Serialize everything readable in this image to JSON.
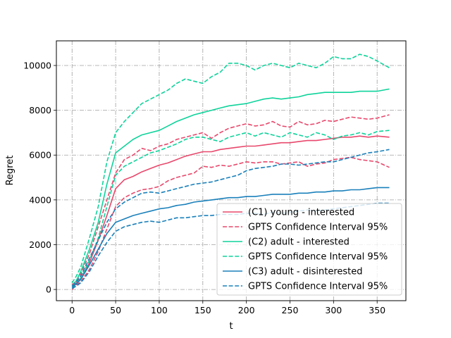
{
  "chart_data": {
    "type": "line",
    "title": "",
    "xlabel": "t",
    "ylabel": "Regret",
    "xlim": [
      -18,
      383
    ],
    "ylim": [
      -500,
      11100
    ],
    "xticks": [
      0,
      50,
      100,
      150,
      200,
      250,
      300,
      350
    ],
    "yticks": [
      0,
      2000,
      4000,
      6000,
      8000,
      10000
    ],
    "grid": true,
    "legend_position": "lower-right",
    "series": [
      {
        "name": "(C1) young - interested",
        "color": "#e8486c",
        "dash": "solid",
        "x": [
          0,
          5,
          10,
          20,
          30,
          40,
          50,
          60,
          70,
          80,
          90,
          100,
          110,
          120,
          130,
          140,
          150,
          160,
          170,
          180,
          190,
          200,
          210,
          220,
          230,
          240,
          250,
          260,
          270,
          280,
          290,
          300,
          310,
          320,
          330,
          340,
          350,
          364
        ],
        "y": [
          100,
          300,
          500,
          1200,
          2200,
          3300,
          4500,
          4900,
          5050,
          5250,
          5400,
          5550,
          5650,
          5800,
          5950,
          6050,
          6150,
          6150,
          6250,
          6300,
          6350,
          6400,
          6400,
          6450,
          6500,
          6550,
          6550,
          6600,
          6650,
          6650,
          6700,
          6750,
          6800,
          6800,
          6850,
          6800,
          6850,
          6800
        ]
      },
      {
        "name": "GPTS Confidence Interval 95%",
        "color": "#e8486c",
        "dash": "dashed",
        "x": [
          0,
          5,
          10,
          20,
          30,
          40,
          50,
          60,
          70,
          80,
          90,
          100,
          110,
          120,
          130,
          140,
          150,
          160,
          170,
          180,
          190,
          200,
          210,
          220,
          230,
          240,
          250,
          260,
          270,
          280,
          290,
          300,
          310,
          320,
          330,
          340,
          350,
          364
        ],
        "y": [
          200,
          400,
          700,
          1600,
          2800,
          4000,
          5200,
          5800,
          6000,
          6300,
          6200,
          6400,
          6500,
          6700,
          6800,
          6900,
          7000,
          6750,
          7000,
          7200,
          7300,
          7400,
          7300,
          7350,
          7500,
          7300,
          7250,
          7500,
          7350,
          7400,
          7550,
          7500,
          7600,
          7700,
          7650,
          7600,
          7650,
          7800
        ]
      },
      {
        "name": "GPTS Confidence Interval 95%",
        "color": "#e8486c",
        "dash": "dashed",
        "x": [
          0,
          5,
          10,
          20,
          30,
          40,
          50,
          60,
          70,
          80,
          90,
          100,
          110,
          120,
          130,
          140,
          150,
          160,
          170,
          180,
          190,
          200,
          210,
          220,
          230,
          240,
          250,
          260,
          270,
          280,
          290,
          300,
          310,
          320,
          330,
          340,
          350,
          364
        ],
        "y": [
          0,
          200,
          350,
          900,
          1700,
          2700,
          3700,
          4100,
          4300,
          4450,
          4500,
          4600,
          4850,
          5000,
          5100,
          5200,
          5500,
          5450,
          5550,
          5500,
          5600,
          5700,
          5650,
          5700,
          5700,
          5600,
          5650,
          5700,
          5500,
          5600,
          5650,
          5800,
          5850,
          5900,
          5800,
          5750,
          5700,
          5450
        ]
      },
      {
        "name": "(C2) adult - interested",
        "color": "#0fd39b",
        "dash": "solid",
        "x": [
          0,
          5,
          10,
          20,
          30,
          40,
          50,
          60,
          70,
          80,
          90,
          100,
          110,
          120,
          130,
          140,
          150,
          160,
          170,
          180,
          190,
          200,
          210,
          220,
          230,
          240,
          250,
          260,
          270,
          280,
          290,
          300,
          310,
          320,
          330,
          340,
          350,
          364
        ],
        "y": [
          150,
          400,
          800,
          1800,
          3000,
          4700,
          6100,
          6400,
          6700,
          6900,
          7000,
          7100,
          7300,
          7500,
          7650,
          7800,
          7900,
          8000,
          8100,
          8200,
          8250,
          8300,
          8400,
          8500,
          8550,
          8500,
          8550,
          8600,
          8700,
          8750,
          8800,
          8800,
          8800,
          8800,
          8850,
          8850,
          8850,
          8950
        ]
      },
      {
        "name": "GPTS Confidence Interval 95%",
        "color": "#0fd39b",
        "dash": "dashed",
        "x": [
          0,
          5,
          10,
          20,
          30,
          40,
          50,
          60,
          70,
          80,
          90,
          100,
          110,
          120,
          130,
          140,
          150,
          160,
          170,
          180,
          190,
          200,
          210,
          220,
          230,
          240,
          250,
          260,
          270,
          280,
          290,
          300,
          310,
          320,
          330,
          340,
          350,
          364
        ],
        "y": [
          300,
          600,
          1000,
          2300,
          3700,
          5700,
          7000,
          7500,
          7900,
          8300,
          8500,
          8700,
          8900,
          9200,
          9400,
          9300,
          9200,
          9500,
          9700,
          10100,
          10100,
          10000,
          9800,
          10000,
          10100,
          10000,
          9900,
          10100,
          10000,
          9900,
          10100,
          10400,
          10300,
          10300,
          10500,
          10400,
          10200,
          9900
        ]
      },
      {
        "name": "GPTS Confidence Interval 95%",
        "color": "#0fd39b",
        "dash": "dashed",
        "x": [
          0,
          5,
          10,
          20,
          30,
          40,
          50,
          60,
          70,
          80,
          90,
          100,
          110,
          120,
          130,
          140,
          150,
          160,
          170,
          180,
          190,
          200,
          210,
          220,
          230,
          240,
          250,
          260,
          270,
          280,
          290,
          300,
          310,
          320,
          330,
          340,
          350,
          364
        ],
        "y": [
          50,
          250,
          500,
          1300,
          2300,
          3700,
          5100,
          5500,
          5700,
          5900,
          6100,
          6200,
          6350,
          6500,
          6700,
          6800,
          6800,
          6700,
          6600,
          6800,
          6900,
          7000,
          6850,
          7000,
          6900,
          6800,
          7000,
          6900,
          6800,
          7000,
          6900,
          6700,
          6850,
          6900,
          7000,
          6900,
          7050,
          7100
        ]
      },
      {
        "name": "(C3) adult - disinterested",
        "color": "#1a80bb",
        "dash": "solid",
        "x": [
          0,
          5,
          10,
          20,
          30,
          40,
          50,
          60,
          70,
          80,
          90,
          100,
          110,
          120,
          130,
          140,
          150,
          160,
          170,
          180,
          190,
          200,
          210,
          220,
          230,
          240,
          250,
          260,
          270,
          280,
          290,
          300,
          310,
          320,
          330,
          340,
          350,
          364
        ],
        "y": [
          100,
          250,
          450,
          1100,
          1800,
          2500,
          3000,
          3150,
          3300,
          3400,
          3500,
          3600,
          3650,
          3750,
          3800,
          3900,
          3950,
          4000,
          4050,
          4100,
          4100,
          4150,
          4150,
          4200,
          4250,
          4250,
          4250,
          4300,
          4300,
          4350,
          4350,
          4400,
          4400,
          4450,
          4450,
          4500,
          4550,
          4550
        ]
      },
      {
        "name": "GPTS Confidence Interval 95%",
        "color": "#1a80bb",
        "dash": "dashed",
        "x": [
          0,
          5,
          10,
          20,
          30,
          40,
          50,
          60,
          70,
          80,
          90,
          100,
          110,
          120,
          130,
          140,
          150,
          160,
          170,
          180,
          190,
          200,
          210,
          220,
          230,
          240,
          250,
          260,
          270,
          280,
          290,
          300,
          310,
          320,
          330,
          340,
          350,
          364
        ],
        "y": [
          150,
          350,
          600,
          1400,
          2200,
          3000,
          3600,
          3900,
          4100,
          4300,
          4350,
          4300,
          4400,
          4500,
          4600,
          4700,
          4750,
          4800,
          4900,
          5000,
          5100,
          5300,
          5400,
          5450,
          5500,
          5600,
          5600,
          5550,
          5600,
          5650,
          5700,
          5700,
          5800,
          5900,
          6000,
          6100,
          6150,
          6250
        ]
      },
      {
        "name": "GPTS Confidence Interval 95%",
        "color": "#1a80bb",
        "dash": "dashed",
        "x": [
          0,
          5,
          10,
          20,
          30,
          40,
          50,
          60,
          70,
          80,
          90,
          100,
          110,
          120,
          130,
          140,
          150,
          160,
          170,
          180,
          190,
          200,
          210,
          220,
          230,
          240,
          250,
          260,
          270,
          280,
          290,
          300,
          310,
          320,
          330,
          340,
          350,
          364
        ],
        "y": [
          50,
          150,
          300,
          800,
          1500,
          2100,
          2600,
          2800,
          2900,
          3000,
          3050,
          3000,
          3100,
          3200,
          3200,
          3250,
          3300,
          3300,
          3350,
          3350,
          3350,
          3400,
          3400,
          3350,
          3450,
          3400,
          3450,
          3500,
          3550,
          3500,
          3550,
          3600,
          3650,
          3700,
          3750,
          3800,
          3850,
          3850
        ]
      }
    ],
    "legend": [
      {
        "label": "(C1) young - interested",
        "color": "#e8486c",
        "dash": "solid"
      },
      {
        "label": "GPTS Confidence Interval 95%",
        "color": "#e8486c",
        "dash": "dashed"
      },
      {
        "label": "(C2) adult - interested",
        "color": "#0fd39b",
        "dash": "solid"
      },
      {
        "label": "GPTS Confidence Interval 95%",
        "color": "#0fd39b",
        "dash": "dashed"
      },
      {
        "label": "(C3) adult - disinterested",
        "color": "#1a80bb",
        "dash": "solid"
      },
      {
        "label": "GPTS Confidence Interval 95%",
        "color": "#1a80bb",
        "dash": "dashed"
      }
    ]
  }
}
